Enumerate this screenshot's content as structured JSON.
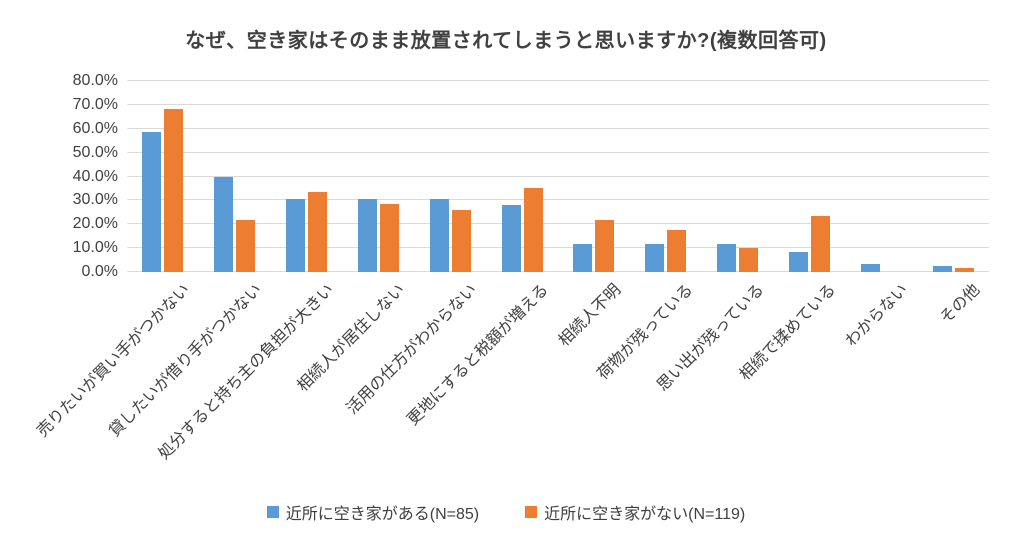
{
  "title": "なぜ、空き家はそのまま放置されてしまうと思いますか?(複数回答可)",
  "colors": {
    "series_1": "#5B9BD5",
    "series_2": "#ED7D31",
    "gridline": "#D9D9D9",
    "text": "#404040"
  },
  "chart_data": {
    "type": "bar",
    "title": "なぜ、空き家はそのまま放置されてしまうと思いますか?(複数回答可)",
    "categories": [
      "売りたいが買い手がつかない",
      "貸したいが借り手がつかない",
      "処分すると持ち主の負担が大きい",
      "相続人が居住しない",
      "活用の仕方がわからない",
      "更地にすると税額が増える",
      "相続人不明",
      "荷物が残っている",
      "思い出が残っている",
      "相続で揉めている",
      "わからない",
      "その他"
    ],
    "series": [
      {
        "name": "近所に空き家がある(N=85)",
        "color": "#5B9BD5",
        "values": [
          58.8,
          40.0,
          30.6,
          30.6,
          30.6,
          28.2,
          11.8,
          11.8,
          11.8,
          8.2,
          3.5,
          2.4
        ]
      },
      {
        "name": "近所に空き家がない(N=119)",
        "color": "#ED7D31",
        "values": [
          68.1,
          21.8,
          33.6,
          28.6,
          26.1,
          35.3,
          21.8,
          17.6,
          10.1,
          23.5,
          0.0,
          1.7
        ]
      }
    ],
    "xlabel": "",
    "ylabel": "",
    "ylim": [
      0,
      80
    ],
    "ytick_step": 10,
    "ytick_labels": [
      "0.0%",
      "10.0%",
      "20.0%",
      "30.0%",
      "40.0%",
      "50.0%",
      "60.0%",
      "70.0%",
      "80.0%"
    ],
    "grid": true,
    "legend_position": "bottom"
  }
}
